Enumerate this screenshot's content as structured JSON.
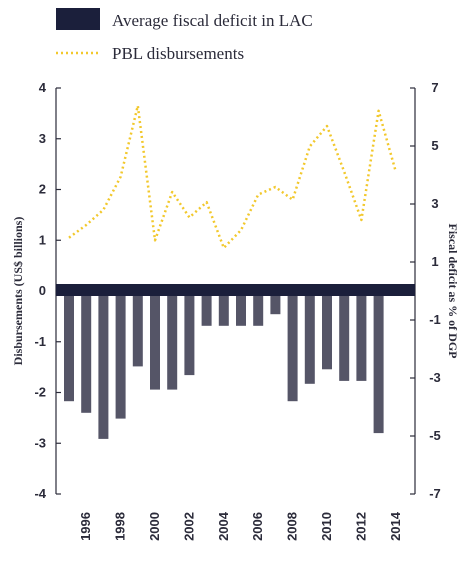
{
  "chart_data": {
    "type": "bar",
    "title": "",
    "xlabel": "",
    "ylabel": "Disbursements (US$ billions)",
    "ylabel_right": "Fiscal deficit as % of DGP",
    "ylim": [
      -4,
      4
    ],
    "ylim_right": [
      -7,
      7
    ],
    "yticks": [
      "4",
      "3",
      "2",
      "1",
      "0",
      "-1",
      "-2",
      "-3",
      "-4"
    ],
    "yticks_right": [
      "7",
      "5",
      "3",
      "1",
      "-1",
      "-3",
      "-5",
      "-7"
    ],
    "x_tick_labels": [
      "1996",
      "1998",
      "2000",
      "2002",
      "2004",
      "2006",
      "2008",
      "2010",
      "2012",
      "2014"
    ],
    "categories": [
      1995,
      1996,
      1997,
      1998,
      1999,
      2000,
      2001,
      2002,
      2003,
      2004,
      2005,
      2006,
      2007,
      2008,
      2009,
      2010,
      2011,
      2012,
      2013,
      2014,
      2015
    ],
    "legend_position": "top-left",
    "series": [
      {
        "name": "Average fiscal deficit in LAC",
        "kind": "bar",
        "axis": "right",
        "color": "#555567",
        "values": [
          -3.8,
          -4.2,
          -5.1,
          -4.4,
          -2.6,
          -3.4,
          -3.4,
          -2.9,
          -1.2,
          -1.2,
          -1.2,
          -1.2,
          -0.8,
          -3.8,
          -3.2,
          -2.7,
          -3.1,
          -3.1,
          -4.9,
          null,
          null
        ]
      },
      {
        "name": "PBL disbursements",
        "kind": "line",
        "axis": "left",
        "color": "#f2c82c",
        "values": [
          1.05,
          1.3,
          1.6,
          2.25,
          3.65,
          1.0,
          1.95,
          1.45,
          1.75,
          0.85,
          1.2,
          1.9,
          2.05,
          1.8,
          2.85,
          3.25,
          2.35,
          1.4,
          3.55,
          2.35,
          null
        ]
      }
    ],
    "zero_line_color": "#1b1f3b"
  }
}
